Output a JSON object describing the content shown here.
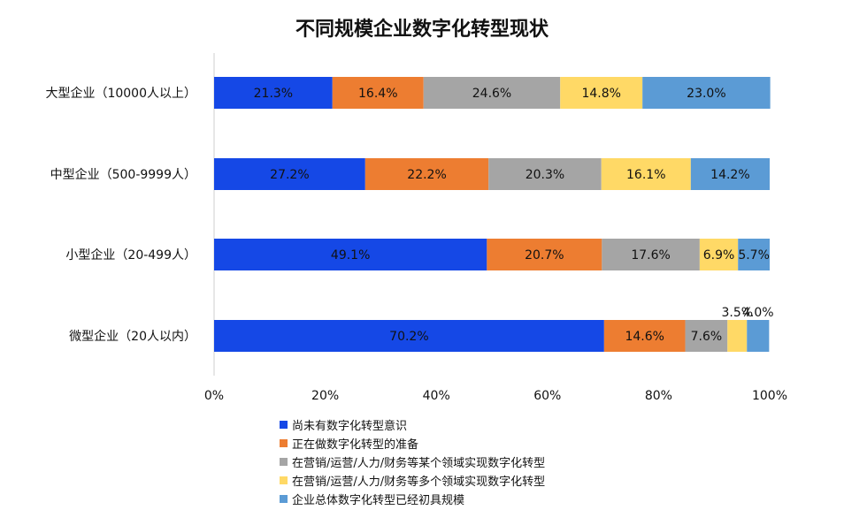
{
  "chart_data": {
    "type": "bar",
    "orientation": "horizontal",
    "stacked": true,
    "title": "不同规模企业数字化转型现状",
    "categories": [
      "大型企业（10000人以上）",
      "中型企业（500-9999人）",
      "小型企业（20-499人）",
      "微型企业（20人以内）"
    ],
    "series": [
      {
        "name": "尚未有数字化转型意识",
        "color": "#1548E6",
        "values": [
          21.3,
          27.2,
          49.1,
          70.2
        ],
        "labels": [
          "21.3%",
          "27.2%",
          "49.1%",
          "70.2%"
        ]
      },
      {
        "name": "正在做数字化转型的准备",
        "color": "#ED7D31",
        "values": [
          16.4,
          22.2,
          20.7,
          14.6
        ],
        "labels": [
          "16.4%",
          "22.2%",
          "20.7%",
          "14.6%"
        ]
      },
      {
        "name": "在营销/运营/人力/财务等某个领域实现数字化转型",
        "color": "#A5A5A5",
        "values": [
          24.6,
          20.3,
          17.6,
          7.6
        ],
        "labels": [
          "24.6%",
          "20.3%",
          "17.6%",
          "7.6%"
        ]
      },
      {
        "name": "在营销/运营/人力/财务等多个领域实现数字化转型",
        "color": "#FFD966",
        "values": [
          14.8,
          16.1,
          6.9,
          3.5
        ],
        "labels": [
          "14.8%",
          "16.1%",
          "6.9%",
          "3.5%"
        ]
      },
      {
        "name": "企业总体数字化转型已经初具规模",
        "color": "#5B9BD5",
        "values": [
          23.0,
          14.2,
          5.7,
          4.0
        ],
        "labels": [
          "23.0%",
          "14.2%",
          "5.7%",
          "4.0%"
        ]
      }
    ],
    "xlim": [
      0,
      100
    ],
    "xticks": [
      "0%",
      "20%",
      "40%",
      "60%",
      "80%",
      "100%"
    ],
    "grid": false,
    "legend_position": "bottom"
  }
}
